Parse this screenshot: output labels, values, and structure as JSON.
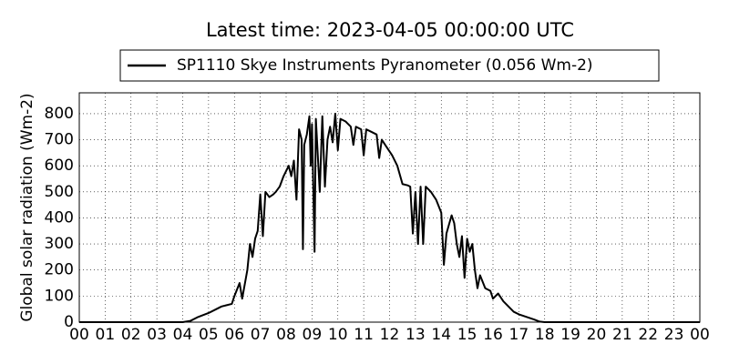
{
  "chart_data": {
    "type": "line",
    "title": "Latest time: 2023-04-05 00:00:00 UTC",
    "y_label": "Global solar radiation (Wm-2)",
    "legend_position": "top-center",
    "grid": true,
    "series": [
      {
        "name": "SP1110 Skye Instruments Pyranometer (0.056 Wm-2)",
        "color": "#000000",
        "x": [
          0,
          4.0,
          4.3,
          4.6,
          5.0,
          5.3,
          5.5,
          5.7,
          5.9,
          6.0,
          6.2,
          6.3,
          6.5,
          6.6,
          6.7,
          6.8,
          6.9,
          7.0,
          7.1,
          7.2,
          7.35,
          7.5,
          7.6,
          7.75,
          7.9,
          8.0,
          8.1,
          8.2,
          8.3,
          8.4,
          8.5,
          8.6,
          8.65,
          8.7,
          8.8,
          8.9,
          8.95,
          9.0,
          9.1,
          9.15,
          9.3,
          9.4,
          9.5,
          9.6,
          9.7,
          9.8,
          9.9,
          10.0,
          10.1,
          10.3,
          10.5,
          10.6,
          10.7,
          10.9,
          11.0,
          11.1,
          11.3,
          11.5,
          11.6,
          11.7,
          11.9,
          12.1,
          12.3,
          12.5,
          12.7,
          12.8,
          12.9,
          13.0,
          13.1,
          13.2,
          13.3,
          13.4,
          13.6,
          13.8,
          14.0,
          14.1,
          14.2,
          14.4,
          14.5,
          14.6,
          14.7,
          14.8,
          14.9,
          15.0,
          15.1,
          15.2,
          15.3,
          15.4,
          15.5,
          15.7,
          15.9,
          16.0,
          16.2,
          16.4,
          16.6,
          16.8,
          17.0,
          17.3,
          17.6,
          17.8,
          18.0,
          24
        ],
        "values": [
          0,
          0,
          5,
          20,
          35,
          50,
          60,
          65,
          70,
          100,
          150,
          90,
          200,
          300,
          250,
          320,
          350,
          490,
          330,
          500,
          480,
          490,
          500,
          520,
          560,
          580,
          600,
          560,
          620,
          470,
          740,
          700,
          280,
          680,
          720,
          790,
          600,
          760,
          270,
          780,
          500,
          790,
          520,
          700,
          750,
          690,
          800,
          660,
          780,
          770,
          750,
          680,
          750,
          740,
          640,
          740,
          730,
          720,
          630,
          700,
          670,
          640,
          600,
          530,
          525,
          520,
          340,
          500,
          300,
          520,
          300,
          520,
          500,
          470,
          420,
          220,
          340,
          410,
          380,
          300,
          250,
          330,
          170,
          320,
          270,
          300,
          200,
          130,
          180,
          130,
          120,
          90,
          110,
          80,
          60,
          40,
          30,
          20,
          10,
          2,
          0,
          0
        ]
      }
    ],
    "xlim": [
      0,
      24
    ],
    "xticks": [
      {
        "value": 0,
        "label": "00"
      },
      {
        "value": 1,
        "label": "01"
      },
      {
        "value": 2,
        "label": "02"
      },
      {
        "value": 3,
        "label": "03"
      },
      {
        "value": 4,
        "label": "04"
      },
      {
        "value": 5,
        "label": "05"
      },
      {
        "value": 6,
        "label": "06"
      },
      {
        "value": 7,
        "label": "07"
      },
      {
        "value": 8,
        "label": "08"
      },
      {
        "value": 9,
        "label": "09"
      },
      10,
      11,
      12,
      13,
      14,
      15,
      16,
      17,
      18,
      19,
      20,
      21,
      22,
      23,
      {
        "value": 24,
        "label": "00"
      }
    ],
    "ylim": [
      0,
      880
    ],
    "yticks": [
      0,
      100,
      200,
      300,
      400,
      500,
      600,
      700,
      800
    ]
  }
}
